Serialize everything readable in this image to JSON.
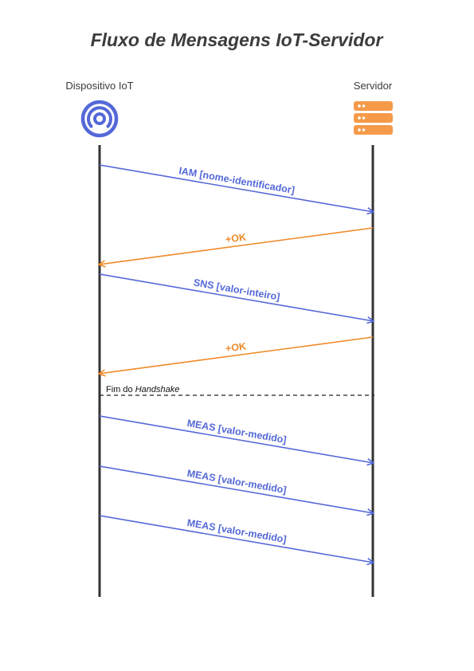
{
  "title": "Fluxo de Mensagens IoT-Servidor",
  "actors": {
    "device": {
      "label": "Dispositivo IoT",
      "icon": "antenna-signal-icon"
    },
    "server": {
      "label": "Servidor",
      "icon": "server-rack-icon"
    }
  },
  "colors": {
    "request": "#5468d8",
    "response": "#f08a2a",
    "lifeline": "#333333",
    "server_icon": "#f59a48",
    "device_icon": "#5468d8"
  },
  "messages": [
    {
      "label": "IAM [nome-identificador]",
      "from": "device",
      "to": "server",
      "kind": "request"
    },
    {
      "label": "+OK",
      "from": "server",
      "to": "device",
      "kind": "response"
    },
    {
      "label": "SNS [valor-inteiro]",
      "from": "device",
      "to": "server",
      "kind": "request"
    },
    {
      "label": "+OK",
      "from": "server",
      "to": "device",
      "kind": "response"
    },
    {
      "label": "MEAS [valor-medido]",
      "from": "device",
      "to": "server",
      "kind": "request"
    },
    {
      "label": "MEAS [valor-medido]",
      "from": "device",
      "to": "server",
      "kind": "request"
    },
    {
      "label": "MEAS [valor-medido]",
      "from": "device",
      "to": "server",
      "kind": "request"
    }
  ],
  "divider": {
    "prefix": "Fim do ",
    "emphasis": "Handshake"
  }
}
